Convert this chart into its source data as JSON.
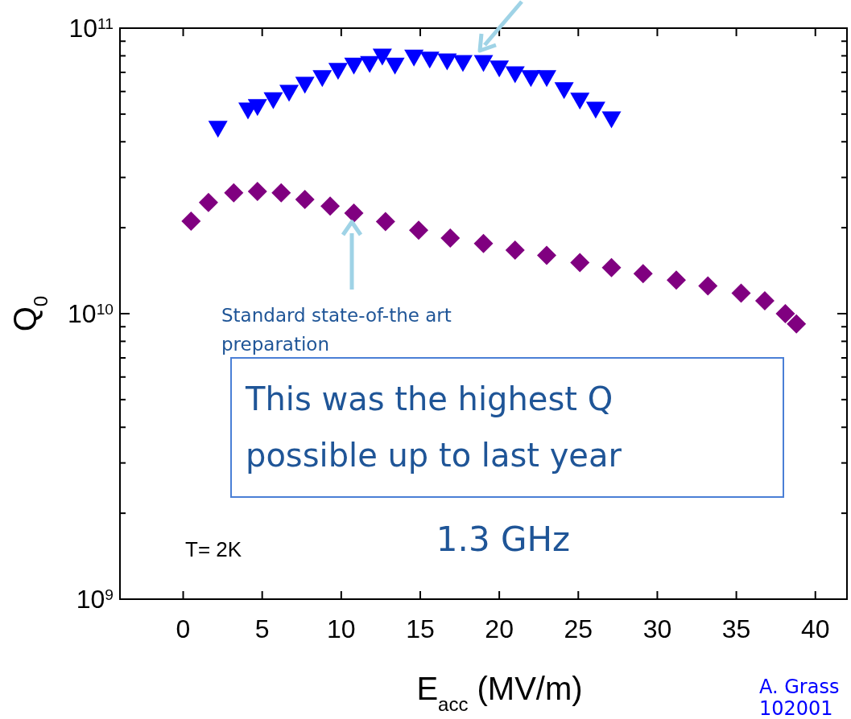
{
  "chart_data": {
    "type": "scatter",
    "xlabel": "E$_{acc}$ (MV/m)",
    "ylabel": "Q$_{0}$",
    "log": "y",
    "xlim": [
      -4,
      42
    ],
    "xticks": [
      0,
      5,
      10,
      15,
      20,
      25,
      30,
      35,
      40
    ],
    "ylim": [
      1000000000,
      100000000000
    ],
    "yticks": [
      {
        "value": 1000000000,
        "label": "10$^{9}$"
      },
      {
        "value": 2000000000,
        "label": null
      },
      {
        "value": 3000000000,
        "label": null
      },
      {
        "value": 4000000000,
        "label": null
      },
      {
        "value": 5000000000,
        "label": null
      },
      {
        "value": 6000000000,
        "label": null
      },
      {
        "value": 7000000000,
        "label": null
      },
      {
        "value": 8000000000,
        "label": null
      },
      {
        "value": 9000000000,
        "label": null
      },
      {
        "value": 10000000000,
        "label": "10$^{10}$"
      },
      {
        "value": 20000000000,
        "label": null
      },
      {
        "value": 30000000000,
        "label": null
      },
      {
        "value": 40000000000,
        "label": null
      },
      {
        "value": 50000000000,
        "label": null
      },
      {
        "value": 60000000000,
        "label": null
      },
      {
        "value": 70000000000,
        "label": null
      },
      {
        "value": 80000000000,
        "label": null
      },
      {
        "value": 90000000000,
        "label": null
      },
      {
        "value": 100000000000,
        "label": "10$^{11}$"
      }
    ],
    "grid": false,
    "series": [
      {
        "color": "#0000ff",
        "marker": "triangle",
        "x": [
          2.2,
          4.1,
          4.7,
          5.7,
          6.7,
          7.7,
          8.8,
          9.8,
          10.8,
          11.8,
          12.6,
          13.4,
          14.6,
          15.6,
          16.7,
          17.7,
          19.0,
          20.0,
          21.0,
          22.0,
          23.0,
          24.1,
          25.1,
          26.1,
          27.1
        ],
        "values": [
          44500000000.0,
          51600000000.0,
          53000000000.0,
          56000000000.0,
          59500000000.0,
          63500000000.0,
          67000000000.0,
          71000000000.0,
          74000000000.0,
          75000000000.0,
          79700000000.0,
          74000000000.0,
          79000000000.0,
          77700000000.0,
          76600000000.0,
          75600000000.0,
          75600000000.0,
          72400000000.0,
          69000000000.0,
          67000000000.0,
          67000000000.0,
          60700000000.0,
          55800000000.0,
          51900000000.0,
          48000000000.0
        ]
      },
      {
        "color": "#800080",
        "marker": "diamond",
        "x": [
          0.5,
          1.6,
          3.2,
          4.7,
          6.2,
          7.7,
          9.3,
          10.8,
          12.8,
          14.9,
          16.9,
          19.0,
          21.0,
          23.0,
          25.1,
          27.1,
          29.1,
          31.2,
          33.2,
          35.3,
          36.8,
          38.1,
          38.8
        ],
        "values": [
          21100000000.0,
          24500000000.0,
          26500000000.0,
          26800000000.0,
          26500000000.0,
          25100000000.0,
          23800000000.0,
          22500000000.0,
          21000000000.0,
          19600000000.0,
          18400000000.0,
          17600000000.0,
          16700000000.0,
          16000000000.0,
          15100000000.0,
          14500000000.0,
          13800000000.0,
          13100000000.0,
          12500000000.0,
          11800000000.0,
          11100000000.0,
          10000000000.0,
          9200000000.0
        ]
      }
    ],
    "annotations": [
      "Standard state-of-the art preparation",
      "This was the highest Q possible up to last year",
      "1.3 GHz",
      "T= 2K",
      "A. Grass",
      "102001"
    ]
  }
}
